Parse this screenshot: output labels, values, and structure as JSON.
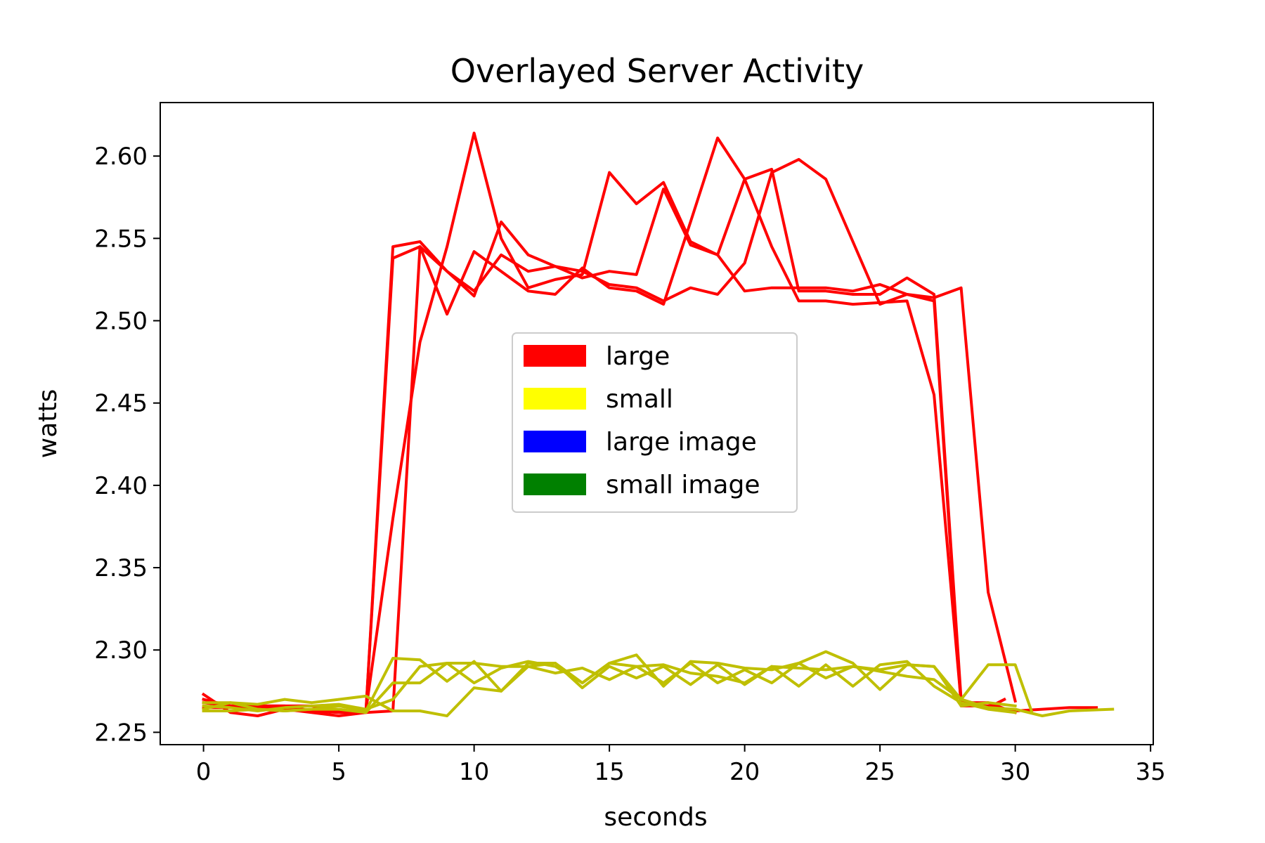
{
  "chart_data": {
    "type": "line",
    "title": "Overlayed Server Activity",
    "xlabel": "seconds",
    "ylabel": "watts",
    "xlim": [
      -1.6,
      35.1
    ],
    "ylim": [
      2.2425,
      2.6325
    ],
    "xticks": [
      0,
      5,
      10,
      15,
      20,
      25,
      30,
      35
    ],
    "yticks": [
      2.25,
      2.3,
      2.35,
      2.4,
      2.45,
      2.5,
      2.55,
      2.6
    ],
    "xtick_labels": [
      "0",
      "5",
      "10",
      "15",
      "20",
      "25",
      "30",
      "35"
    ],
    "ytick_labels": [
      "2.25",
      "2.30",
      "2.35",
      "2.40",
      "2.45",
      "2.50",
      "2.55",
      "2.60"
    ],
    "grid": false,
    "legend_position": "center",
    "legend": [
      {
        "label": "large",
        "color": "#ff0000"
      },
      {
        "label": "small",
        "color": "#ffff00"
      },
      {
        "label": "large image",
        "color": "#0000ff"
      },
      {
        "label": "small image",
        "color": "#008000"
      }
    ],
    "series": [
      {
        "color": "#ff0000",
        "x": [
          0,
          1,
          2,
          3,
          4,
          5,
          6,
          7,
          8,
          9,
          10,
          11,
          12,
          13,
          14,
          15,
          16,
          17,
          18,
          19,
          20,
          21,
          22,
          23,
          24,
          25,
          26,
          27,
          28,
          29,
          29.6
        ],
        "y": [
          2.273,
          2.262,
          2.26,
          2.264,
          2.262,
          2.26,
          2.262,
          2.263,
          2.545,
          2.53,
          2.515,
          2.56,
          2.54,
          2.533,
          2.526,
          2.53,
          2.528,
          2.58,
          2.546,
          2.54,
          2.586,
          2.592,
          2.518,
          2.518,
          2.516,
          2.516,
          2.526,
          2.516,
          2.27,
          2.265,
          2.27
        ]
      },
      {
        "color": "#ff0000",
        "x": [
          0,
          1,
          2,
          3,
          4,
          5,
          6,
          7,
          8,
          9,
          10,
          11,
          12,
          13,
          14,
          15,
          16,
          17,
          18,
          19,
          20,
          21,
          22,
          23,
          24,
          25,
          26,
          27,
          28,
          29,
          30
        ],
        "y": [
          2.268,
          2.266,
          2.266,
          2.266,
          2.263,
          2.262,
          2.262,
          2.538,
          2.545,
          2.504,
          2.542,
          2.53,
          2.518,
          2.516,
          2.532,
          2.52,
          2.518,
          2.51,
          2.56,
          2.611,
          2.586,
          2.545,
          2.512,
          2.512,
          2.51,
          2.511,
          2.512,
          2.455,
          2.268,
          2.268,
          2.262
        ]
      },
      {
        "color": "#ff0000",
        "x": [
          0,
          1,
          2,
          3,
          4,
          5,
          6,
          7,
          8,
          9,
          10,
          11,
          12,
          13,
          14,
          15,
          16,
          17,
          18,
          19,
          20,
          21,
          22,
          23,
          24,
          25,
          26,
          27,
          28,
          29,
          30,
          31,
          32,
          33
        ],
        "y": [
          2.265,
          2.265,
          2.265,
          2.264,
          2.263,
          2.263,
          2.263,
          2.38,
          2.487,
          2.545,
          2.614,
          2.55,
          2.52,
          2.525,
          2.528,
          2.59,
          2.571,
          2.584,
          2.548,
          2.54,
          2.518,
          2.52,
          2.52,
          2.52,
          2.518,
          2.522,
          2.516,
          2.512,
          2.266,
          2.266,
          2.263,
          2.264,
          2.265,
          2.265
        ]
      },
      {
        "color": "#ff0000",
        "x": [
          0,
          1,
          2,
          3,
          4,
          5,
          6,
          7,
          8,
          9,
          10,
          11,
          12,
          13,
          14,
          15,
          16,
          17,
          18,
          19,
          20,
          21,
          22,
          23,
          24,
          25,
          26,
          27,
          28,
          29,
          30
        ],
        "y": [
          2.27,
          2.266,
          2.266,
          2.266,
          2.266,
          2.263,
          2.262,
          2.545,
          2.548,
          2.53,
          2.518,
          2.54,
          2.53,
          2.533,
          2.53,
          2.522,
          2.52,
          2.512,
          2.52,
          2.516,
          2.535,
          2.59,
          2.598,
          2.586,
          2.548,
          2.51,
          2.516,
          2.514,
          2.52,
          2.335,
          2.269
        ]
      },
      {
        "color": "#bfbf00",
        "x": [
          0,
          1,
          2,
          3,
          4,
          5,
          6,
          7,
          8,
          9,
          10,
          11,
          12,
          13,
          14,
          15,
          16,
          17,
          18,
          19,
          20,
          21,
          22,
          23,
          24,
          25,
          26,
          27,
          28,
          29,
          30,
          31,
          32,
          33.6
        ],
        "y": [
          2.268,
          2.268,
          2.267,
          2.27,
          2.268,
          2.27,
          2.272,
          2.263,
          2.263,
          2.26,
          2.277,
          2.275,
          2.292,
          2.292,
          2.28,
          2.292,
          2.29,
          2.291,
          2.286,
          2.284,
          2.28,
          2.29,
          2.289,
          2.288,
          2.29,
          2.287,
          2.284,
          2.282,
          2.27,
          2.265,
          2.264,
          2.26,
          2.263,
          2.264
        ]
      },
      {
        "color": "#bfbf00",
        "x": [
          0,
          1,
          2,
          3,
          4,
          5,
          6,
          7,
          8,
          9,
          10,
          11,
          12,
          13,
          14,
          15,
          16,
          17,
          18,
          19,
          20,
          21,
          22,
          23,
          24,
          25,
          26,
          27,
          28,
          29,
          30
        ],
        "y": [
          2.263,
          2.263,
          2.264,
          2.263,
          2.264,
          2.266,
          2.263,
          2.295,
          2.294,
          2.281,
          2.293,
          2.275,
          2.29,
          2.292,
          2.277,
          2.29,
          2.283,
          2.29,
          2.279,
          2.291,
          2.279,
          2.29,
          2.278,
          2.291,
          2.278,
          2.291,
          2.293,
          2.278,
          2.268,
          2.264,
          2.262
        ]
      },
      {
        "color": "#bfbf00",
        "x": [
          0,
          1,
          2,
          3,
          4,
          5,
          6,
          7,
          8,
          9,
          10,
          11,
          12,
          13,
          14,
          15,
          16,
          17,
          18,
          19,
          20,
          21,
          22,
          23,
          24,
          25,
          26,
          27,
          28,
          29,
          30,
          30.6
        ],
        "y": [
          2.264,
          2.268,
          2.264,
          2.263,
          2.264,
          2.264,
          2.262,
          2.28,
          2.28,
          2.292,
          2.292,
          2.29,
          2.29,
          2.286,
          2.289,
          2.282,
          2.29,
          2.28,
          2.292,
          2.28,
          2.288,
          2.28,
          2.292,
          2.283,
          2.29,
          2.288,
          2.291,
          2.29,
          2.27,
          2.291,
          2.291,
          2.263
        ]
      },
      {
        "color": "#bfbf00",
        "x": [
          0,
          1,
          2,
          3,
          4,
          5,
          6,
          7,
          8,
          9,
          10,
          11,
          12,
          13,
          14,
          15,
          16,
          17,
          18,
          19,
          20,
          21,
          22,
          23,
          24,
          25,
          26,
          27,
          28,
          29,
          30
        ],
        "y": [
          2.266,
          2.265,
          2.263,
          2.265,
          2.266,
          2.267,
          2.264,
          2.27,
          2.29,
          2.292,
          2.28,
          2.289,
          2.293,
          2.29,
          2.28,
          2.292,
          2.297,
          2.278,
          2.293,
          2.292,
          2.289,
          2.288,
          2.292,
          2.299,
          2.292,
          2.276,
          2.291,
          2.29,
          2.266,
          2.268,
          2.266
        ]
      }
    ]
  }
}
